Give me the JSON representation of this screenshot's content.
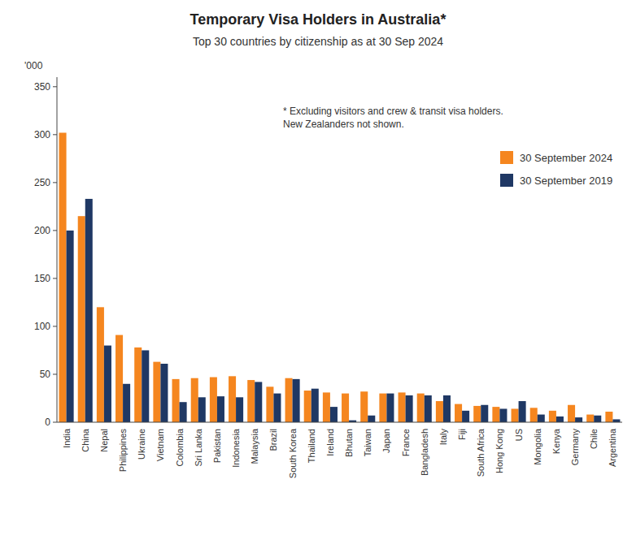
{
  "chart_data": {
    "type": "bar",
    "title": "Temporary Visa Holders in Australia*",
    "subtitle": "Top 30 countries by citizenship as at 30 Sep 2024",
    "ylabel": "'000",
    "annotation": "* Excluding visitors and crew & transit visa holders.\nNew Zealanders not shown.",
    "categories": [
      "India",
      "China",
      "Nepal",
      "Philippines",
      "Ukraine",
      "Vietnam",
      "Colombia",
      "Sri Lanka",
      "Pakistan",
      "Indonesia",
      "Malaysia",
      "Brazil",
      "South Korea",
      "Thailand",
      "Ireland",
      "Bhutan",
      "Taiwan",
      "Japan",
      "France",
      "Bangladesh",
      "Italy",
      "Fiji",
      "South Africa",
      "Hong Kong",
      "US",
      "Mongolia",
      "Kenya",
      "Germany",
      "Chile",
      "Argentina"
    ],
    "series": [
      {
        "name": "30 September 2024",
        "color": "#F5861F",
        "values": [
          302,
          215,
          120,
          91,
          78,
          63,
          45,
          46,
          47,
          48,
          44,
          37,
          46,
          33,
          31,
          30,
          32,
          30,
          31,
          30,
          22,
          19,
          17,
          16,
          14,
          15,
          12,
          18,
          8,
          11
        ]
      },
      {
        "name": "30 September 2019",
        "color": "#1F3864",
        "values": [
          200,
          233,
          80,
          40,
          75,
          61,
          21,
          26,
          27,
          26,
          42,
          30,
          45,
          35,
          16,
          2,
          7,
          30,
          28,
          28,
          28,
          12,
          18,
          14,
          22,
          8,
          6,
          5,
          7,
          3
        ]
      }
    ],
    "ylim": [
      0,
      360
    ],
    "yticks": [
      0,
      50,
      100,
      150,
      200,
      250,
      300,
      350
    ],
    "grid": false,
    "legend": "upper right"
  }
}
